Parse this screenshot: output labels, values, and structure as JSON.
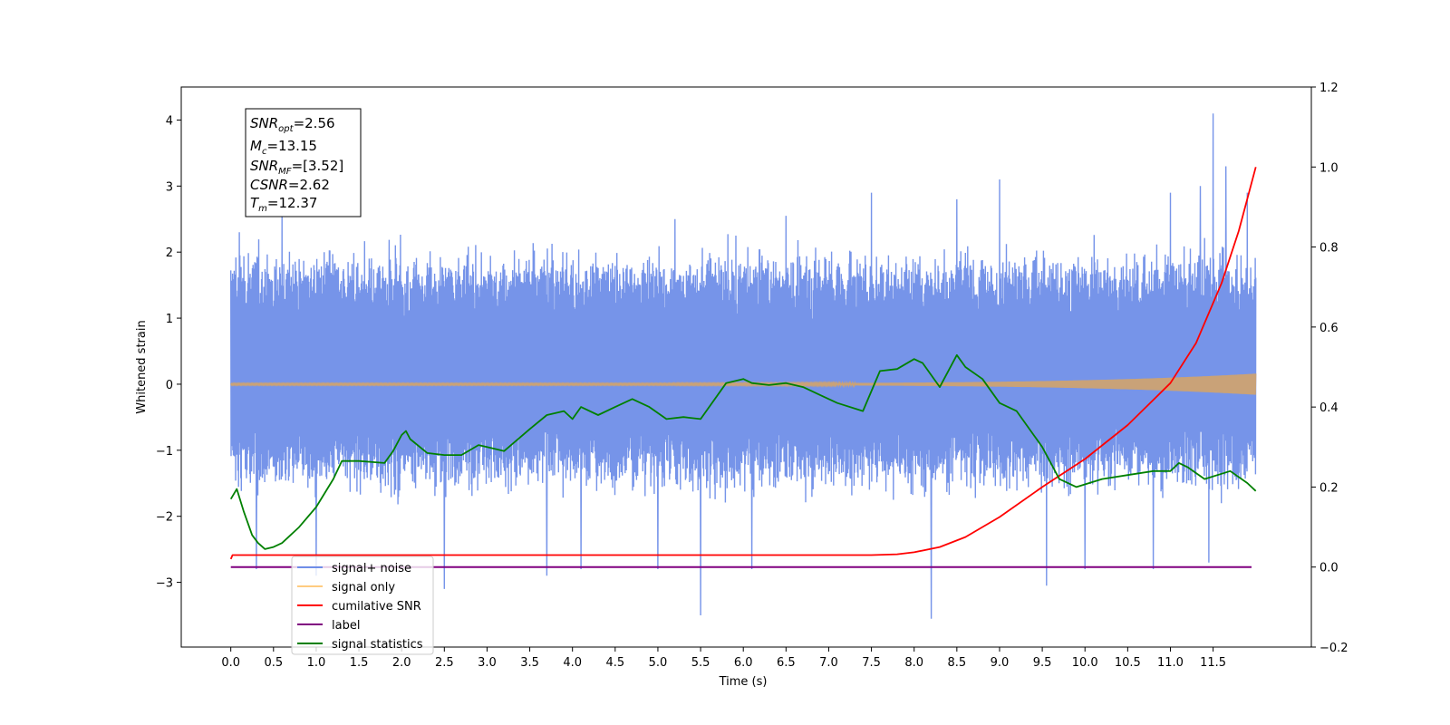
{
  "chart_data": {
    "type": "line",
    "xlabel": "Time (s)",
    "ylabel": "Whitened strain",
    "ylabel_right": "",
    "xlim": [
      -0.58,
      12.65
    ],
    "ylim": [
      -3.98,
      4.5
    ],
    "ylim_right": [
      -0.2,
      1.2
    ],
    "x_ticks": [
      "0.0",
      "0.5",
      "1.0",
      "1.5",
      "2.0",
      "2.5",
      "3.0",
      "3.5",
      "4.0",
      "4.5",
      "5.0",
      "5.5",
      "6.0",
      "6.5",
      "7.0",
      "7.5",
      "8.0",
      "8.5",
      "9.0",
      "9.5",
      "10.0",
      "10.5",
      "11.0",
      "11.5"
    ],
    "y_ticks": [
      "−3",
      "−2",
      "−1",
      "0",
      "1",
      "2",
      "3",
      "4"
    ],
    "y_ticks_right": [
      "−0.2",
      "0.0",
      "0.2",
      "0.4",
      "0.6",
      "0.8",
      "1.0",
      "1.2"
    ],
    "annotation": {
      "lines": [
        {
          "base": "SNR",
          "sub": "opt",
          "value": "=2.56"
        },
        {
          "base": "M",
          "sub": "c",
          "value": "=13.15"
        },
        {
          "base": "SNR",
          "sub": "MF",
          "value": "=[3.52]"
        },
        {
          "base": "CSNR",
          "sub": "",
          "value": "=2.62"
        },
        {
          "base": "T",
          "sub": "m",
          "value": "=12.37"
        }
      ]
    },
    "legend": {
      "placement": "lower-left",
      "entries": [
        {
          "label": "signal+ noise",
          "color": "#6f8ee8"
        },
        {
          "label": "signal only",
          "color": "#ffcc80"
        },
        {
          "label": "cumilative SNR",
          "color": "#ff0000"
        },
        {
          "label": "label",
          "color": "#800080"
        },
        {
          "label": "signal statistics",
          "color": "#008000"
        }
      ]
    },
    "series": [
      {
        "name": "signal+ noise",
        "axis": "left",
        "color": "#6f8ee8",
        "x_range": [
          0.0,
          12.0
        ],
        "envelope_center": 0.2,
        "envelope_typical_max": 1.5,
        "envelope_typical_min": -1.5,
        "peaks_high": [
          [
            0.05,
            1.6
          ],
          [
            0.1,
            2.3
          ],
          [
            0.3,
            2.6
          ],
          [
            0.6,
            2.6
          ],
          [
            1.0,
            2.6
          ],
          [
            2.5,
            2.85
          ],
          [
            5.2,
            2.5
          ],
          [
            6.5,
            2.55
          ],
          [
            7.5,
            2.9
          ],
          [
            8.5,
            2.8
          ],
          [
            9.0,
            3.1
          ],
          [
            11.0,
            2.9
          ],
          [
            11.35,
            3.0
          ],
          [
            11.5,
            4.1
          ],
          [
            11.65,
            3.3
          ],
          [
            11.9,
            2.9
          ]
        ],
        "peaks_low": [
          [
            0.3,
            -2.8
          ],
          [
            1.0,
            -2.9
          ],
          [
            2.5,
            -3.1
          ],
          [
            3.7,
            -2.9
          ],
          [
            4.1,
            -2.8
          ],
          [
            5.0,
            -2.8
          ],
          [
            5.5,
            -3.5
          ],
          [
            6.1,
            -2.8
          ],
          [
            8.2,
            -3.55
          ],
          [
            9.55,
            -3.05
          ],
          [
            10.0,
            -2.8
          ],
          [
            10.8,
            -2.8
          ],
          [
            11.45,
            -2.7
          ]
        ]
      },
      {
        "name": "signal only",
        "axis": "left",
        "color": "#ffcc80",
        "x_range": [
          0.0,
          12.0
        ],
        "amplitude_start": 0.0,
        "amplitude_end": 0.15
      },
      {
        "name": "cumilative SNR",
        "axis": "right",
        "color": "#ff0000",
        "x": [
          0.0,
          0.02,
          7.5,
          7.8,
          8.0,
          8.3,
          8.6,
          9.0,
          9.5,
          10.0,
          10.5,
          11.0,
          11.3,
          11.6,
          11.8,
          12.0
        ],
        "y": [
          0.02,
          0.03,
          0.03,
          0.032,
          0.037,
          0.05,
          0.075,
          0.125,
          0.2,
          0.27,
          0.355,
          0.46,
          0.56,
          0.71,
          0.84,
          1.0
        ]
      },
      {
        "name": "label",
        "axis": "right",
        "color": "#800080",
        "x": [
          0.0,
          11.95
        ],
        "y": [
          0.0,
          0.0
        ]
      },
      {
        "name": "signal statistics",
        "axis": "right",
        "color": "#008000",
        "x": [
          0.0,
          0.07,
          0.15,
          0.25,
          0.32,
          0.4,
          0.5,
          0.6,
          0.8,
          1.0,
          1.2,
          1.3,
          1.5,
          1.8,
          1.9,
          2.0,
          2.05,
          2.1,
          2.3,
          2.5,
          2.7,
          2.9,
          3.0,
          3.2,
          3.5,
          3.7,
          3.9,
          4.0,
          4.1,
          4.3,
          4.5,
          4.7,
          4.9,
          5.1,
          5.3,
          5.5,
          5.8,
          6.0,
          6.1,
          6.3,
          6.5,
          6.7,
          6.9,
          7.1,
          7.4,
          7.6,
          7.8,
          8.0,
          8.1,
          8.3,
          8.5,
          8.6,
          8.8,
          9.0,
          9.2,
          9.5,
          9.7,
          9.9,
          10.2,
          10.5,
          10.8,
          11.0,
          11.1,
          11.2,
          11.4,
          11.7,
          11.9,
          12.0
        ],
        "y": [
          0.17,
          0.195,
          0.14,
          0.08,
          0.06,
          0.045,
          0.05,
          0.06,
          0.1,
          0.15,
          0.22,
          0.265,
          0.265,
          0.26,
          0.29,
          0.33,
          0.34,
          0.32,
          0.285,
          0.28,
          0.28,
          0.305,
          0.3,
          0.29,
          0.345,
          0.38,
          0.39,
          0.37,
          0.4,
          0.38,
          0.4,
          0.42,
          0.4,
          0.37,
          0.375,
          0.37,
          0.46,
          0.47,
          0.46,
          0.455,
          0.46,
          0.45,
          0.43,
          0.41,
          0.39,
          0.49,
          0.495,
          0.52,
          0.51,
          0.45,
          0.53,
          0.5,
          0.47,
          0.41,
          0.39,
          0.3,
          0.22,
          0.2,
          0.22,
          0.23,
          0.24,
          0.24,
          0.26,
          0.25,
          0.22,
          0.24,
          0.21,
          0.19
        ]
      }
    ]
  }
}
